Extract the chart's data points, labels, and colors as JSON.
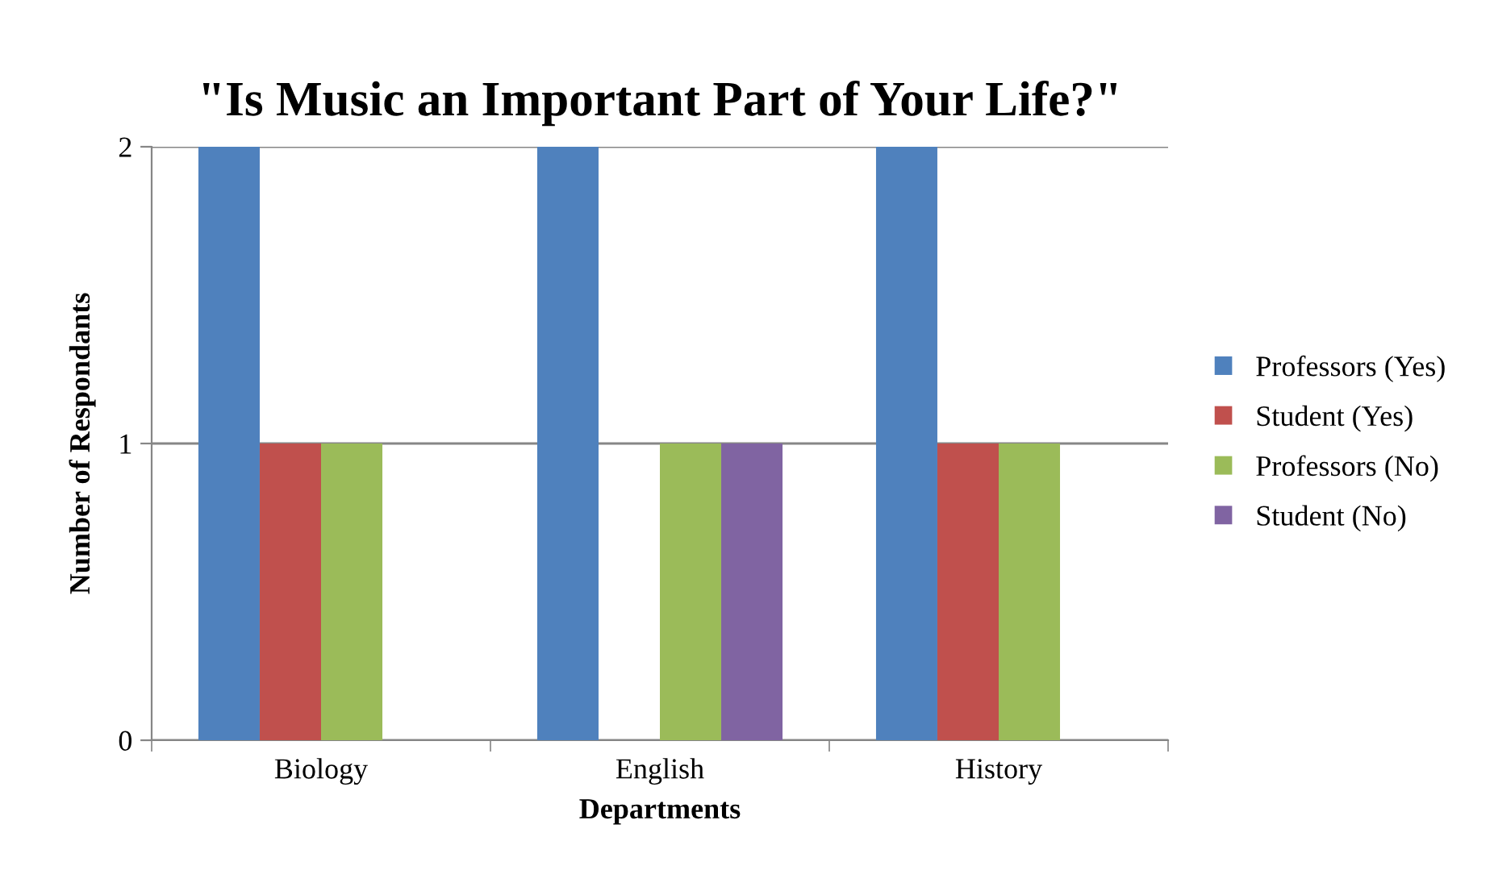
{
  "chart_data": {
    "type": "bar",
    "title": "\"Is Music an Important Part of Your Life?\"",
    "xlabel": "Departments",
    "ylabel": "Number of Respondants",
    "categories": [
      "Biology",
      "English",
      "History"
    ],
    "series": [
      {
        "name": "Professors (Yes)",
        "color": "#4f81bd",
        "values": [
          2,
          2,
          2
        ]
      },
      {
        "name": "Student (Yes)",
        "color": "#c0504d",
        "values": [
          1,
          0,
          1
        ]
      },
      {
        "name": "Professors (No)",
        "color": "#9bbb59",
        "values": [
          1,
          1,
          1
        ]
      },
      {
        "name": "Student (No)",
        "color": "#8064a2",
        "values": [
          0,
          1,
          0
        ]
      }
    ],
    "ylim": [
      0,
      2
    ],
    "yticks": [
      0,
      1,
      2
    ],
    "grid": "y",
    "legend": "right"
  }
}
